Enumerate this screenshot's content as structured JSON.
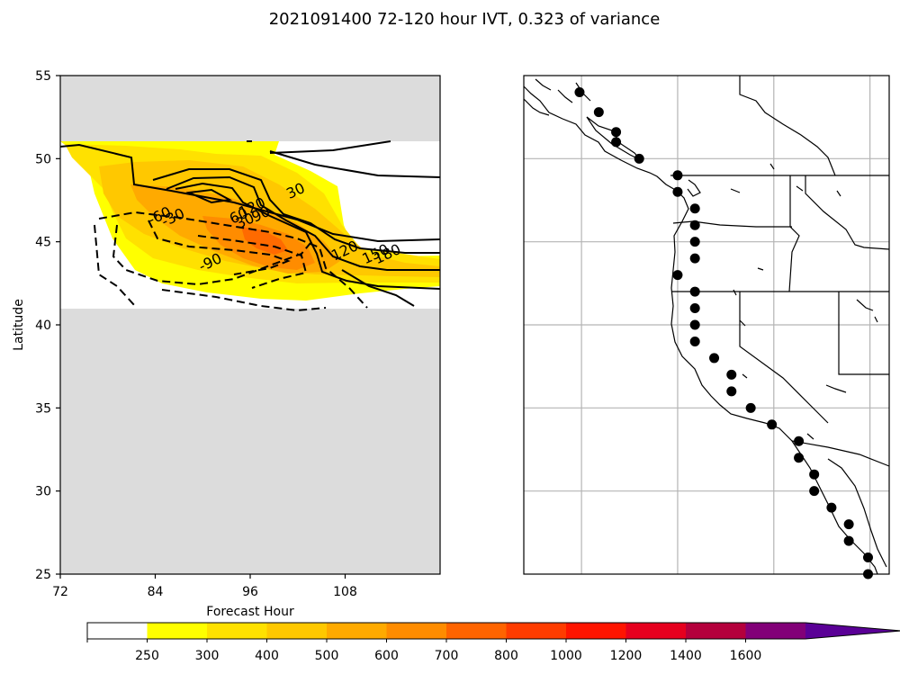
{
  "title": "2021091400 72-120 hour IVT, 0.323 of variance",
  "chart_data": [
    {
      "type": "heatmap",
      "xlabel": "Forecast Hour",
      "ylabel": "Latitude",
      "xlim": [
        72,
        120
      ],
      "ylim": [
        25,
        55
      ],
      "xticks": [
        "72",
        "84",
        "96",
        "108"
      ],
      "yticks": [
        "25",
        "30",
        "35",
        "40",
        "45",
        "50",
        "55"
      ],
      "missing_color": "#dcdcdc",
      "data_lat_range": [
        41,
        51
      ],
      "fill_peak": {
        "x": 98,
        "y": 45.3,
        "level": 700
      },
      "contour_labels": [
        {
          "text": "30",
          "x": 102,
          "y": 47.8
        },
        {
          "text": "120",
          "x": 96.5,
          "y": 46.8
        },
        {
          "text": "90",
          "x": 97.6,
          "y": 46.4
        },
        {
          "text": "60",
          "x": 94.8,
          "y": 46.3
        },
        {
          "text": "30",
          "x": 95.6,
          "y": 46.0
        },
        {
          "text": "-60",
          "x": 84.8,
          "y": 46.3
        },
        {
          "text": "-30",
          "x": 86.5,
          "y": 46.2
        },
        {
          "text": "-90",
          "x": 91.2,
          "y": 43.5
        },
        {
          "text": "120",
          "x": 108.2,
          "y": 44.2
        },
        {
          "text": "150",
          "x": 112.1,
          "y": 44.0
        },
        {
          "text": "180",
          "x": 113.6,
          "y": 44.0
        }
      ]
    },
    {
      "type": "scatter",
      "description_free": true,
      "gridlines_lon": [
        -130,
        -125,
        -120,
        -115
      ],
      "gridlines_lat": [
        30,
        35,
        40,
        45,
        50
      ],
      "extent": {
        "lon": [
          -133,
          -114
        ],
        "lat": [
          25,
          55
        ]
      },
      "points": [
        {
          "lon": -130.1,
          "lat": 54.0
        },
        {
          "lon": -129.1,
          "lat": 52.8
        },
        {
          "lon": -128.2,
          "lat": 51.6
        },
        {
          "lon": -128.2,
          "lat": 51.0
        },
        {
          "lon": -127.0,
          "lat": 50.0
        },
        {
          "lon": -125.0,
          "lat": 49.0
        },
        {
          "lon": -125.0,
          "lat": 48.0
        },
        {
          "lon": -124.1,
          "lat": 47.0
        },
        {
          "lon": -124.1,
          "lat": 46.0
        },
        {
          "lon": -124.1,
          "lat": 45.0
        },
        {
          "lon": -124.1,
          "lat": 44.0
        },
        {
          "lon": -125.0,
          "lat": 43.0
        },
        {
          "lon": -124.1,
          "lat": 42.0
        },
        {
          "lon": -124.1,
          "lat": 41.0
        },
        {
          "lon": -124.1,
          "lat": 40.0
        },
        {
          "lon": -124.1,
          "lat": 39.0
        },
        {
          "lon": -123.1,
          "lat": 38.0
        },
        {
          "lon": -122.2,
          "lat": 37.0
        },
        {
          "lon": -122.2,
          "lat": 36.0
        },
        {
          "lon": -121.2,
          "lat": 35.0
        },
        {
          "lon": -120.1,
          "lat": 34.0
        },
        {
          "lon": -118.7,
          "lat": 33.0
        },
        {
          "lon": -118.7,
          "lat": 32.0
        },
        {
          "lon": -117.9,
          "lat": 31.0
        },
        {
          "lon": -117.9,
          "lat": 30.0
        },
        {
          "lon": -117.0,
          "lat": 29.0
        },
        {
          "lon": -116.1,
          "lat": 28.0
        },
        {
          "lon": -116.1,
          "lat": 27.0
        },
        {
          "lon": -115.1,
          "lat": 26.0
        },
        {
          "lon": -115.1,
          "lat": 25.0
        }
      ]
    }
  ],
  "colorbar": {
    "levels": [
      "250",
      "300",
      "400",
      "500",
      "600",
      "700",
      "800",
      "1000",
      "1200",
      "1400",
      "1600"
    ],
    "colors": [
      "#ffffff",
      "#ffff00",
      "#ffe100",
      "#ffc800",
      "#ffaa00",
      "#ff8c00",
      "#ff6400",
      "#ff3c00",
      "#ff1400",
      "#e6001e",
      "#b4003c",
      "#820078",
      "#5a0096"
    ]
  }
}
